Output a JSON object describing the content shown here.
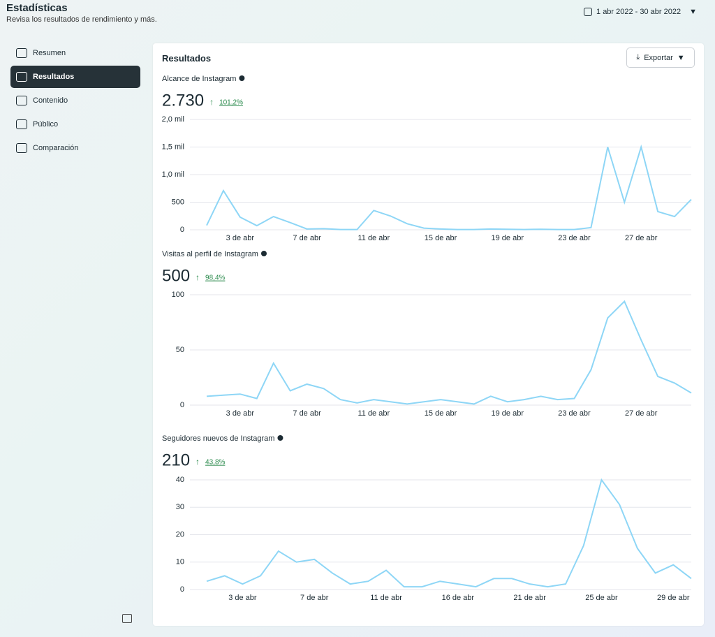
{
  "header": {
    "title": "Estadísticas",
    "subtitle": "Revisa los resultados de rendimiento y más.",
    "date_range": "1 abr 2022 - 30 abr 2022"
  },
  "sidebar": {
    "items": [
      "Resumen",
      "Resultados",
      "Contenido",
      "Público",
      "Comparación"
    ],
    "active": 1
  },
  "card": {
    "title": "Resultados",
    "export": "Exportar"
  },
  "chart_data": [
    {
      "type": "line",
      "title": "Alcance de Instagram",
      "total": "2.730",
      "change": "101,2%",
      "color": "#8ed6f6",
      "grid": true,
      "categories": [
        null,
        null,
        "3 de abr",
        null,
        null,
        null,
        "7 de abr",
        null,
        null,
        null,
        "11 de abr",
        null,
        null,
        null,
        "15 de abr",
        null,
        null,
        null,
        "19 de abr",
        null,
        null,
        null,
        "23 de abr",
        null,
        null,
        null,
        "27 de abr",
        null,
        null,
        null
      ],
      "values": [
        80,
        710,
        230,
        75,
        240,
        130,
        15,
        20,
        5,
        5,
        350,
        250,
        110,
        30,
        15,
        5,
        5,
        15,
        10,
        5,
        10,
        5,
        5,
        40,
        1500,
        500,
        1500,
        330,
        240,
        550
      ],
      "ylim": [
        0,
        2000
      ],
      "yticks": [
        0,
        500,
        {
          "value": 1000,
          "label": "1,0 mil"
        },
        {
          "value": 1500,
          "label": "1,5 mil"
        },
        {
          "value": 2000,
          "label": "2,0 mil"
        }
      ]
    },
    {
      "type": "line",
      "title": "Visitas al perfil de Instagram",
      "total": "500",
      "change": "98,4%",
      "color": "#8ed6f6",
      "grid": true,
      "categories": [
        null,
        null,
        "3 de abr",
        null,
        null,
        null,
        "7 de abr",
        null,
        null,
        null,
        "11 de abr",
        null,
        null,
        null,
        "15 de abr",
        null,
        null,
        null,
        "19 de abr",
        null,
        null,
        null,
        "23 de abr",
        null,
        null,
        null,
        "27 de abr",
        null,
        null,
        null
      ],
      "values": [
        8,
        9,
        10,
        6,
        38,
        13,
        19,
        15,
        5,
        2,
        5,
        3,
        1,
        3,
        5,
        3,
        1,
        8,
        3,
        5,
        8,
        5,
        6,
        32,
        79,
        94,
        59,
        26,
        20,
        11
      ],
      "ylim": [
        0,
        100
      ],
      "yticks": [
        0,
        50,
        100
      ]
    },
    {
      "type": "line",
      "title": "Seguidores nuevos de Instagram",
      "total": "210",
      "change": "43,8%",
      "color": "#8ed6f6",
      "grid": true,
      "categories": [
        null,
        null,
        "3 de abr",
        null,
        null,
        null,
        "7 de abr",
        null,
        null,
        null,
        "11 de abr",
        null,
        null,
        null,
        "16 de abr",
        null,
        null,
        null,
        "21 de abr",
        null,
        null,
        null,
        "25 de abr",
        null,
        null,
        null,
        "29 de abr",
        null
      ],
      "values": [
        3,
        5,
        2,
        5,
        14,
        10,
        11,
        6,
        2,
        3,
        7,
        1,
        1,
        3,
        2,
        1,
        4,
        4,
        2,
        1,
        2,
        16,
        40,
        31,
        15,
        6,
        9,
        4
      ],
      "ylim": [
        0,
        40
      ],
      "yticks": [
        0,
        10,
        20,
        30,
        40
      ]
    }
  ]
}
